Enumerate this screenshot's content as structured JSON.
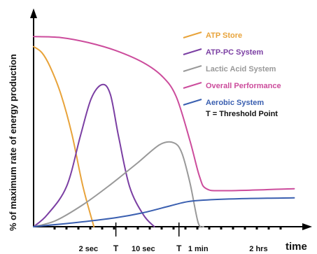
{
  "chart_data": {
    "type": "line",
    "ylabel": "% of maximum rate of energy production",
    "xlabel": "time",
    "x_ticks": [
      {
        "label": "2 sec",
        "x": 2
      },
      {
        "label": "T",
        "x": 3
      },
      {
        "label": "10 sec",
        "x": 4
      },
      {
        "label": "T",
        "x": 5.3
      },
      {
        "label": "1 min",
        "x": 6
      },
      {
        "label": "2 hrs",
        "x": 8.2
      }
    ],
    "xlim": [
      0,
      10
    ],
    "ylim": [
      0,
      100
    ],
    "series": [
      {
        "name": "ATP Store",
        "color": "#e8a33a",
        "points": [
          [
            0,
            90
          ],
          [
            0.3,
            87
          ],
          [
            0.6,
            80
          ],
          [
            1.0,
            66
          ],
          [
            1.4,
            46
          ],
          [
            1.8,
            20
          ],
          [
            2.2,
            0
          ]
        ]
      },
      {
        "name": "ATP-PC System",
        "color": "#7b3fa3",
        "points": [
          [
            0,
            0
          ],
          [
            0.5,
            6
          ],
          [
            1.2,
            20
          ],
          [
            1.7,
            45
          ],
          [
            2.1,
            64
          ],
          [
            2.5,
            71
          ],
          [
            2.8,
            66
          ],
          [
            3.1,
            45
          ],
          [
            3.5,
            20
          ],
          [
            4.0,
            6
          ],
          [
            4.4,
            0
          ]
        ]
      },
      {
        "name": "Lactic Acid System",
        "color": "#999999",
        "points": [
          [
            0,
            0
          ],
          [
            0.8,
            3
          ],
          [
            1.8,
            11
          ],
          [
            2.8,
            21
          ],
          [
            3.8,
            32
          ],
          [
            4.6,
            41
          ],
          [
            5.1,
            42
          ],
          [
            5.4,
            37
          ],
          [
            5.7,
            22
          ],
          [
            6.0,
            2
          ],
          [
            6.2,
            0
          ]
        ]
      },
      {
        "name": "Overall Performance",
        "color": "#cc4c9c",
        "points": [
          [
            0,
            95
          ],
          [
            1.0,
            94.5
          ],
          [
            2.0,
            92
          ],
          [
            3.0,
            88
          ],
          [
            4.0,
            82
          ],
          [
            4.7,
            75
          ],
          [
            5.2,
            65
          ],
          [
            5.7,
            43
          ],
          [
            6.05,
            25
          ],
          [
            6.3,
            19
          ],
          [
            7.0,
            18
          ],
          [
            9.5,
            19
          ]
        ]
      },
      {
        "name": "Aerobic System",
        "color": "#3a5fb0",
        "points": [
          [
            0,
            0
          ],
          [
            1.5,
            2
          ],
          [
            3.0,
            4.5
          ],
          [
            4.0,
            7
          ],
          [
            5.0,
            10.5
          ],
          [
            5.6,
            12.5
          ],
          [
            6.2,
            13.3
          ],
          [
            7.5,
            14
          ],
          [
            9.5,
            14.4
          ]
        ]
      }
    ],
    "legend": {
      "position": "top-right",
      "note": "T = Threshold Point"
    },
    "grid": false
  }
}
